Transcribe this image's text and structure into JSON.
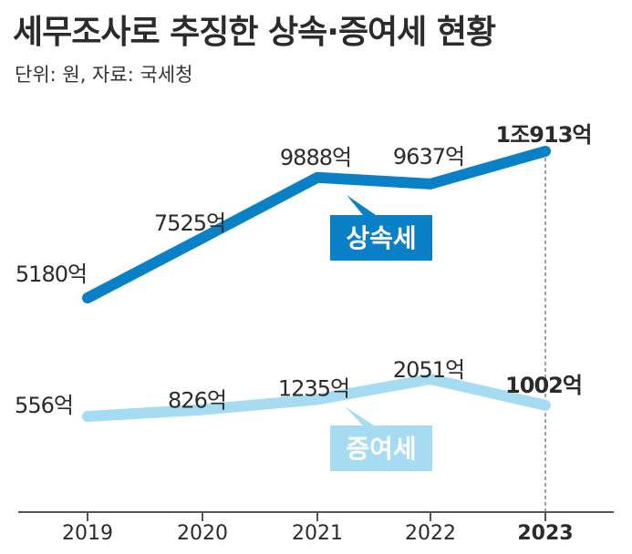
{
  "title": "세무조사로 추징한 상속·증여세 현황",
  "unit_note": "단위: 원, 자료: 국세청",
  "colors": {
    "inheritance": "#0a80c6",
    "gift": "#a6dcf2",
    "axis": "#555555"
  },
  "chart_data": {
    "type": "line",
    "x": [
      "2019",
      "2020",
      "2021",
      "2022",
      "2023"
    ],
    "ylim": [
      0,
      11000
    ],
    "series": [
      {
        "name": "상속세",
        "values": [
          5180,
          7525,
          9888,
          9637,
          10913
        ],
        "labels": [
          "5180억",
          "7525억",
          "9888억",
          "9637억",
          "1조913억"
        ]
      },
      {
        "name": "증여세",
        "values": [
          556,
          826,
          1235,
          2051,
          1002
        ],
        "labels": [
          "556억",
          "826억",
          "1235억",
          "2051억",
          "1002억"
        ]
      }
    ],
    "grid": false,
    "legend": "inline"
  }
}
